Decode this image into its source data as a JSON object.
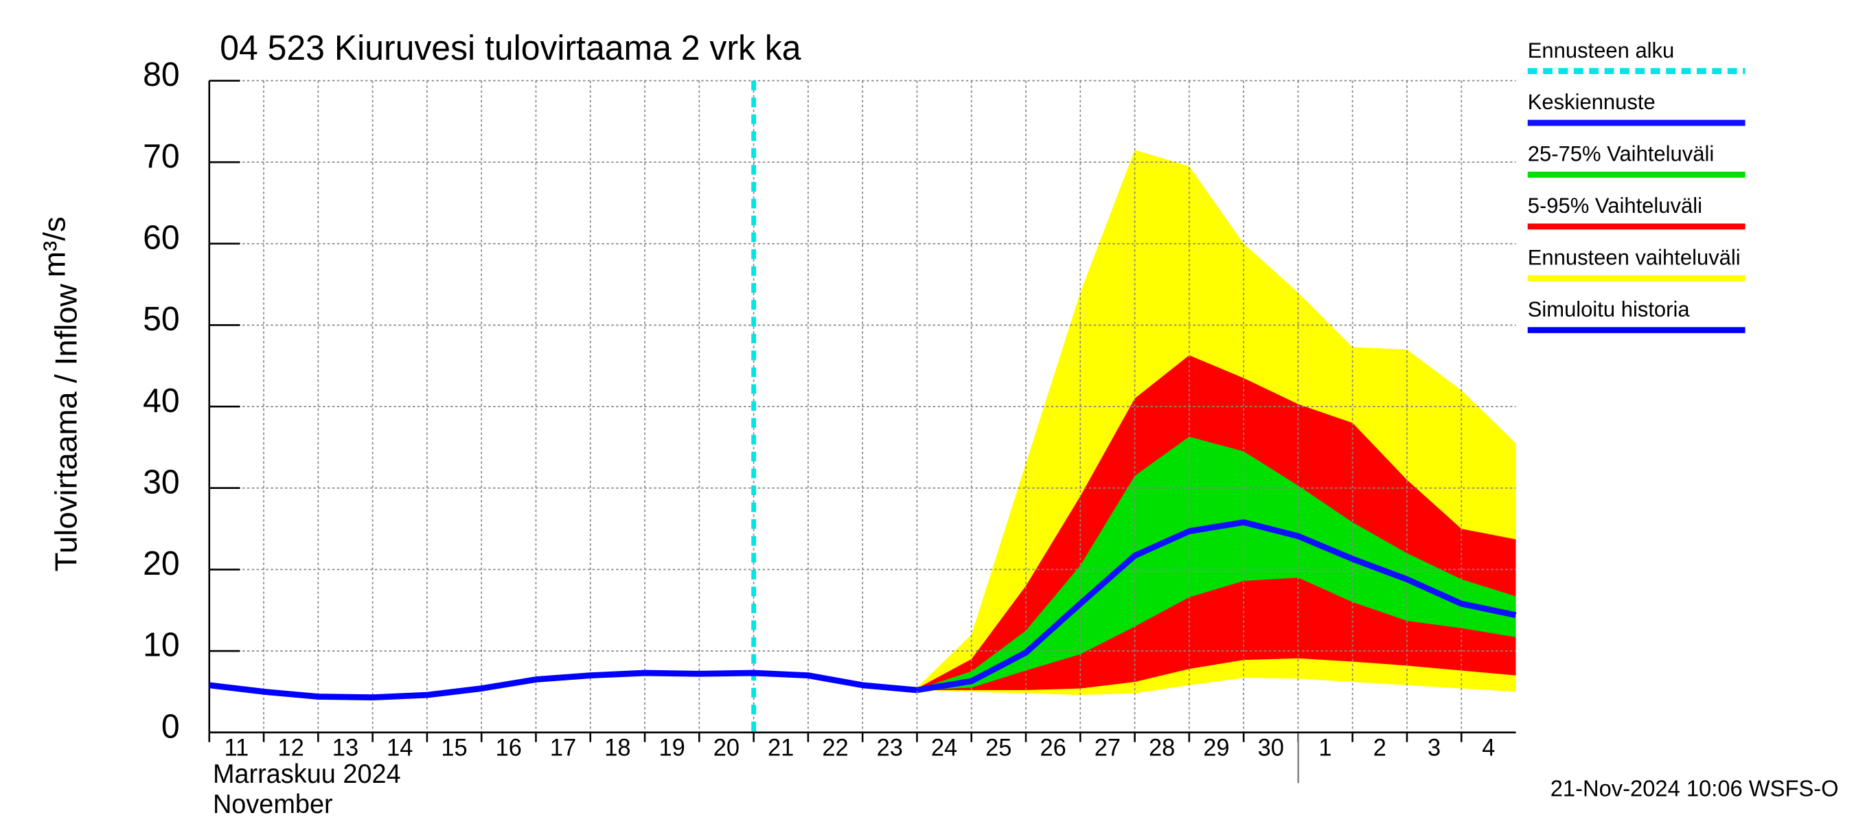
{
  "chart_data": {
    "type": "line",
    "title": "04 523 Kiuruvesi tulovirtaama 2 vrk ka",
    "y_label": "Tulovirtaama / Inflow",
    "y_unit": "m³/s",
    "x_label": [
      "Marraskuu 2024",
      "November"
    ],
    "footer": "21-Nov-2024 10:06 WSFS-O",
    "ylim": [
      0,
      80
    ],
    "yticks": [
      0,
      10,
      20,
      30,
      40,
      50,
      60,
      70,
      80
    ],
    "xlim": [
      0,
      24
    ],
    "xticks": [
      {
        "value": 0,
        "label": "11"
      },
      {
        "value": 1,
        "label": "12"
      },
      {
        "value": 2,
        "label": "13"
      },
      {
        "value": 3,
        "label": "14"
      },
      {
        "value": 4,
        "label": "15"
      },
      {
        "value": 5,
        "label": "16"
      },
      {
        "value": 6,
        "label": "17"
      },
      {
        "value": 7,
        "label": "18"
      },
      {
        "value": 8,
        "label": "19"
      },
      {
        "value": 9,
        "label": "20"
      },
      {
        "value": 10,
        "label": "21"
      },
      {
        "value": 11,
        "label": "22"
      },
      {
        "value": 12,
        "label": "23"
      },
      {
        "value": 13,
        "label": "24"
      },
      {
        "value": 14,
        "label": "25"
      },
      {
        "value": 15,
        "label": "26"
      },
      {
        "value": 16,
        "label": "27"
      },
      {
        "value": 17,
        "label": "28"
      },
      {
        "value": 18,
        "label": "29"
      },
      {
        "value": 19,
        "label": "30"
      },
      {
        "value": 20,
        "label": "1"
      },
      {
        "value": 21,
        "label": "2"
      },
      {
        "value": 22,
        "label": "3"
      },
      {
        "value": 23,
        "label": "4"
      }
    ],
    "grid": true,
    "forecast_start": {
      "name": "Ennusteen alku",
      "x": 10,
      "color": "#00e5e5"
    },
    "bands": [
      {
        "name": "Ennusteen vaihteluväli",
        "color": "#ffff00",
        "x": [
          13,
          14,
          15,
          16,
          17,
          18,
          19,
          20,
          21,
          22,
          23,
          24
        ],
        "upper": [
          5.5,
          12,
          33,
          54,
          71.5,
          69.5,
          60,
          54,
          47.3,
          47,
          42,
          35.5
        ],
        "lower": [
          5.2,
          5.0,
          4.8,
          4.6,
          4.8,
          5.8,
          6.7,
          6.6,
          6.2,
          5.8,
          5.4,
          5.0
        ]
      },
      {
        "name": "5-95% Vaihteluväli",
        "color": "#ff0000",
        "x": [
          13,
          14,
          15,
          16,
          17,
          18,
          19,
          20,
          21,
          22,
          23,
          24
        ],
        "upper": [
          5.4,
          9,
          18,
          29,
          41,
          46.3,
          43.5,
          40.3,
          38,
          31,
          25,
          23.7
        ],
        "lower": [
          5.2,
          5.2,
          5.2,
          5.4,
          6.2,
          7.8,
          8.9,
          9.1,
          8.7,
          8.2,
          7.6,
          7.0
        ]
      },
      {
        "name": "25-75% Vaihteluväli",
        "color": "#00e000",
        "x": [
          13,
          14,
          15,
          16,
          17,
          18,
          19,
          20,
          21,
          22,
          23,
          24
        ],
        "upper": [
          5.3,
          7.5,
          12.5,
          20.5,
          31.5,
          36.3,
          34.5,
          30.3,
          25.8,
          22,
          18.8,
          16.7
        ],
        "lower": [
          5.2,
          5.5,
          7.6,
          9.6,
          13,
          16.6,
          18.6,
          19,
          16,
          13.7,
          12.8,
          11.7
        ]
      }
    ],
    "series": [
      {
        "name": "Simuloitu historia",
        "color": "#0000ff",
        "x": [
          0,
          1,
          2,
          3,
          4,
          5,
          6,
          7,
          8,
          9,
          10,
          11,
          12,
          13
        ],
        "values": [
          5.8,
          5.0,
          4.4,
          4.3,
          4.6,
          5.4,
          6.5,
          7.0,
          7.3,
          7.2,
          7.3,
          7.0,
          5.8,
          5.2
        ]
      },
      {
        "name": "Keskiennuste",
        "color": "#1010ff",
        "x": [
          13,
          14,
          15,
          16,
          17,
          18,
          19,
          20,
          21,
          22,
          23,
          24
        ],
        "values": [
          5.2,
          6.3,
          9.8,
          15.8,
          21.7,
          24.7,
          25.8,
          24.1,
          21.3,
          18.8,
          15.8,
          14.4
        ]
      }
    ]
  }
}
